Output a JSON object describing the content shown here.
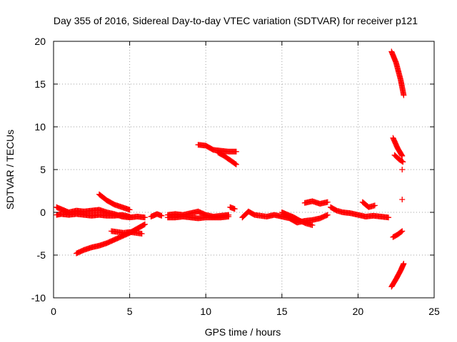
{
  "chart_data": {
    "type": "scatter",
    "title": "Day 355 of 2016, Sidereal Day-to-day VTEC variation (SDTVAR) for receiver p121",
    "xlabel": "GPS time / hours",
    "ylabel": "SDTVAR / TECUs",
    "xlim": [
      0,
      25
    ],
    "ylim": [
      -10,
      20
    ],
    "xticks": [
      0,
      5,
      10,
      15,
      20,
      25
    ],
    "yticks": [
      -10,
      -5,
      0,
      5,
      10,
      15,
      20
    ],
    "xtick_labels": [
      "0",
      "5",
      "10",
      "15",
      "20",
      "25"
    ],
    "ytick_labels": [
      "-10",
      "-5",
      "0",
      "5",
      "10",
      "15",
      "20"
    ],
    "grid": true,
    "marker": "plus",
    "color": "#ff0000",
    "series": [
      {
        "segments": [
          {
            "x": [
              0.2,
              0.6,
              1.0,
              1.5,
              2.0,
              2.5,
              3.0,
              3.5,
              4.0,
              4.5,
              5.0,
              5.5,
              6.0
            ],
            "y": [
              0.6,
              0.3,
              0.0,
              0.2,
              0.1,
              0.2,
              0.3,
              0.0,
              -0.2,
              -0.5,
              -0.6,
              -0.5,
              -0.6
            ]
          },
          {
            "x": [
              0.2,
              0.5,
              1.0,
              1.5,
              2.0,
              2.5,
              3.0,
              3.5,
              4.0,
              4.5,
              5.0
            ],
            "y": [
              -0.3,
              -0.2,
              -0.3,
              -0.2,
              -0.3,
              -0.4,
              -0.3,
              -0.4,
              -0.4,
              -0.3,
              -0.5
            ]
          },
          {
            "x": [
              3.0,
              3.5,
              4.0,
              4.5,
              5.0
            ],
            "y": [
              2.1,
              1.4,
              0.9,
              0.6,
              0.3
            ]
          },
          {
            "x": [
              1.5,
              2.0,
              2.5,
              3.0,
              3.5,
              4.0,
              4.5,
              5.0,
              5.5,
              6.0
            ],
            "y": [
              -4.8,
              -4.4,
              -4.1,
              -3.9,
              -3.6,
              -3.2,
              -2.8,
              -2.4,
              -1.9,
              -1.4
            ]
          },
          {
            "x": [
              3.8,
              4.2,
              4.6,
              5.0,
              5.4,
              5.8
            ],
            "y": [
              -2.2,
              -2.3,
              -2.4,
              -2.3,
              -2.4,
              -2.5
            ]
          },
          {
            "x": [
              6.4,
              6.8,
              7.1
            ],
            "y": [
              -0.5,
              -0.2,
              -0.4
            ]
          },
          {
            "x": [
              7.5,
              8.0,
              8.5,
              9.0,
              9.5,
              10.0,
              10.5,
              11.0,
              11.5
            ],
            "y": [
              -0.3,
              -0.2,
              -0.3,
              -0.1,
              0.1,
              -0.3,
              -0.5,
              -0.4,
              -0.3
            ]
          },
          {
            "x": [
              7.5,
              8.0,
              8.5,
              9.0,
              9.5,
              10.0,
              10.5,
              11.0,
              11.5
            ],
            "y": [
              -0.6,
              -0.6,
              -0.5,
              -0.6,
              -0.7,
              -0.6,
              -0.6,
              -0.6,
              -0.5
            ]
          },
          {
            "x": [
              9.5,
              10.0,
              10.5,
              11.0,
              11.5,
              12.0
            ],
            "y": [
              7.9,
              7.8,
              7.3,
              7.2,
              7.1,
              7.1
            ]
          },
          {
            "x": [
              10.8,
              11.2,
              11.6,
              12.0
            ],
            "y": [
              7.0,
              6.6,
              6.1,
              5.6
            ]
          },
          {
            "x": [
              11.6,
              11.9
            ],
            "y": [
              0.6,
              0.4
            ]
          },
          {
            "x": [
              12.4,
              12.8,
              13.2,
              13.6,
              14.0,
              14.5,
              15.0,
              15.5,
              16.0,
              16.5,
              17.0,
              17.5,
              18.0
            ],
            "y": [
              -0.6,
              0.1,
              -0.3,
              -0.4,
              -0.5,
              -0.3,
              -0.5,
              -0.7,
              -1.2,
              -1.0,
              -0.9,
              -0.7,
              -0.3
            ]
          },
          {
            "x": [
              15.0,
              15.4,
              15.8,
              16.2,
              16.6,
              17.0
            ],
            "y": [
              0.0,
              -0.3,
              -0.6,
              -1.0,
              -1.3,
              -1.5
            ]
          },
          {
            "x": [
              16.5,
              17.0,
              17.5,
              18.0
            ],
            "y": [
              1.1,
              1.3,
              1.0,
              1.2
            ]
          },
          {
            "x": [
              18.2,
              18.6,
              19.0,
              19.5,
              20.0,
              20.5,
              21.0,
              21.5,
              22.0
            ],
            "y": [
              0.6,
              0.2,
              0.0,
              -0.1,
              -0.3,
              -0.5,
              -0.4,
              -0.5,
              -0.6
            ]
          },
          {
            "x": [
              20.3,
              20.7,
              21.1
            ],
            "y": [
              1.2,
              0.6,
              0.8
            ]
          },
          {
            "x": [
              22.2,
              22.5,
              22.8,
              23.0
            ],
            "y": [
              18.8,
              17.5,
              15.5,
              13.7
            ]
          },
          {
            "x": [
              22.3,
              22.6,
              22.9
            ],
            "y": [
              8.7,
              7.5,
              6.6
            ]
          },
          {
            "x": [
              22.4,
              22.7,
              22.95
            ],
            "y": [
              6.7,
              6.2,
              5.9
            ]
          },
          {
            "x": [
              22.9
            ],
            "y": [
              5.0
            ]
          },
          {
            "x": [
              22.9
            ],
            "y": [
              1.5
            ]
          },
          {
            "x": [
              22.3,
              22.6,
              22.9
            ],
            "y": [
              -2.9,
              -2.6,
              -2.2
            ]
          },
          {
            "x": [
              22.2,
              22.5,
              22.8,
              23.0
            ],
            "y": [
              -8.7,
              -7.8,
              -6.8,
              -6.0
            ]
          }
        ]
      }
    ]
  }
}
